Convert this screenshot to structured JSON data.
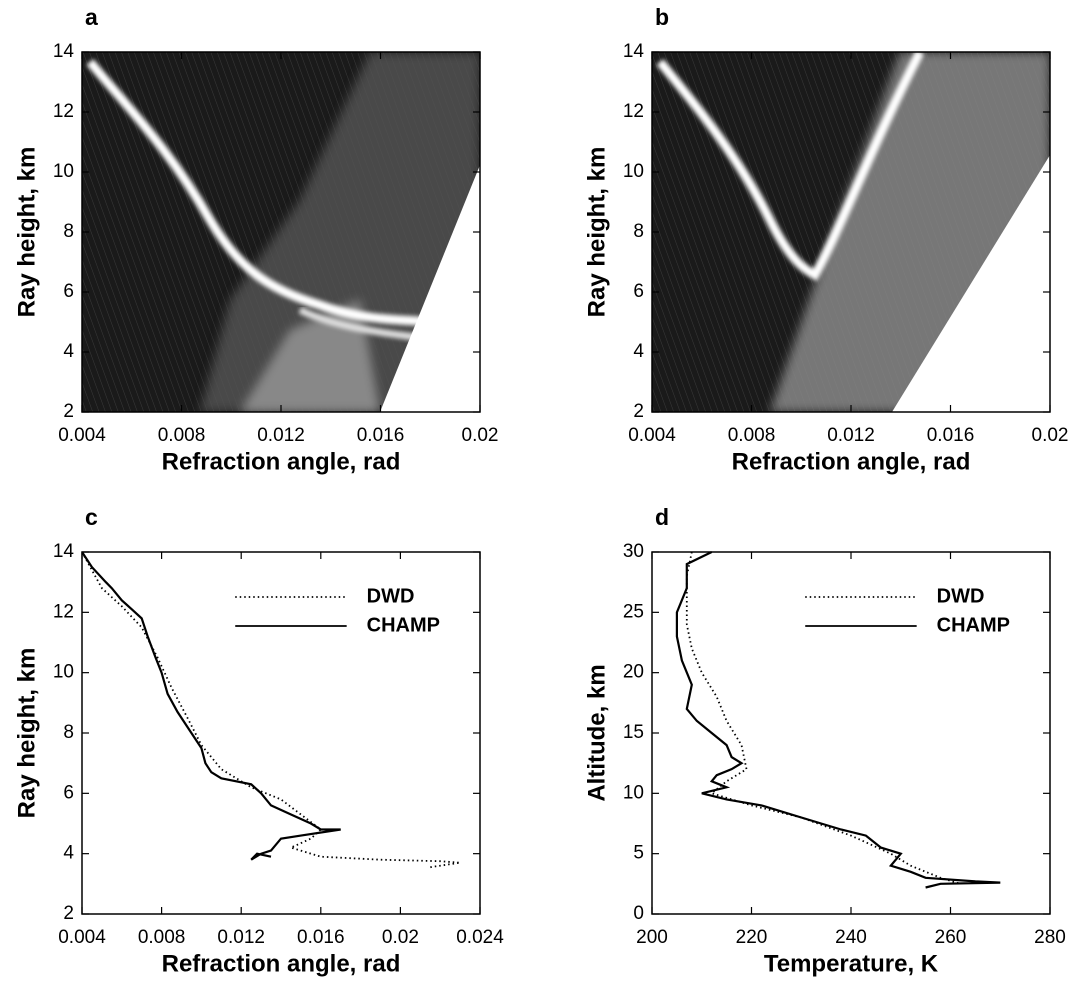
{
  "chart_data": [
    {
      "type": "heatmap",
      "label": "a",
      "xlabel": "Refraction angle, rad",
      "ylabel": "Ray height, km",
      "xlim": [
        0.004,
        0.02
      ],
      "ylim": [
        2,
        14
      ],
      "xticks": [
        0.004,
        0.008,
        0.012,
        0.016,
        0.02
      ],
      "yticks": [
        2,
        4,
        6,
        8,
        10,
        12,
        14
      ]
    },
    {
      "type": "heatmap",
      "label": "b",
      "xlabel": "Refraction angle, rad",
      "ylabel": "Ray height, km",
      "xlim": [
        0.004,
        0.02
      ],
      "ylim": [
        2,
        14
      ],
      "xticks": [
        0.004,
        0.008,
        0.012,
        0.016,
        0.02
      ],
      "yticks": [
        2,
        4,
        6,
        8,
        10,
        12,
        14
      ]
    },
    {
      "type": "line",
      "label": "c",
      "xlabel": "Refraction angle, rad",
      "ylabel": "Ray height, km",
      "xlim": [
        0.004,
        0.024
      ],
      "ylim": [
        2,
        14
      ],
      "xticks": [
        0.004,
        0.008,
        0.012,
        0.016,
        0.02,
        0.024
      ],
      "yticks": [
        2,
        4,
        6,
        8,
        10,
        12,
        14
      ],
      "legend": "upper right",
      "series": [
        {
          "name": "DWD",
          "color": "#000000",
          "linestyle": "dotted",
          "x": [
            0.004,
            0.0045,
            0.005,
            0.006,
            0.007,
            0.0078,
            0.0085,
            0.0093,
            0.01,
            0.011,
            0.0125,
            0.014,
            0.015,
            0.016,
            0.0155,
            0.0145,
            0.016,
            0.019,
            0.022,
            0.023,
            0.0215
          ],
          "values": [
            14,
            13.4,
            12.8,
            12.2,
            11.5,
            10.5,
            9.5,
            8.5,
            7.6,
            6.8,
            6.2,
            5.8,
            5.3,
            4.8,
            4.5,
            4.2,
            3.9,
            3.8,
            3.75,
            3.7,
            3.55
          ]
        },
        {
          "name": "CHAMP",
          "color": "#000000",
          "linestyle": "solid",
          "x": [
            0.004,
            0.0045,
            0.0052,
            0.0055,
            0.006,
            0.0065,
            0.007,
            0.0073,
            0.0077,
            0.008,
            0.0083,
            0.0088,
            0.0095,
            0.01,
            0.0102,
            0.0105,
            0.011,
            0.0125,
            0.013,
            0.0135,
            0.0145,
            0.0155,
            0.016,
            0.017,
            0.015,
            0.014,
            0.0135,
            0.013,
            0.0125,
            0.0128,
            0.0135
          ],
          "values": [
            14,
            13.5,
            13,
            12.8,
            12.4,
            12.1,
            11.8,
            11.2,
            10.5,
            10,
            9.3,
            8.7,
            8,
            7.5,
            7,
            6.7,
            6.5,
            6.3,
            6,
            5.6,
            5.3,
            5,
            4.8,
            4.8,
            4.6,
            4.5,
            4.1,
            4,
            3.8,
            4,
            3.9
          ]
        }
      ]
    },
    {
      "type": "line",
      "label": "d",
      "xlabel": "Temperature, K",
      "ylabel": "Altitude, km",
      "xlim": [
        200,
        280
      ],
      "ylim": [
        0,
        30
      ],
      "xticks": [
        200,
        220,
        240,
        260,
        280
      ],
      "yticks": [
        0,
        5,
        10,
        15,
        20,
        25,
        30
      ],
      "legend": "upper right",
      "series": [
        {
          "name": "DWD",
          "color": "#000000",
          "linestyle": "dotted",
          "x": [
            208,
            207,
            207,
            207,
            208,
            210,
            213,
            215,
            218,
            219,
            215,
            212,
            220,
            230,
            240,
            248,
            252,
            258,
            262
          ],
          "values": [
            30,
            28,
            26,
            24,
            22,
            20,
            18,
            16,
            14,
            12,
            11,
            10,
            9,
            8,
            6.5,
            5,
            4,
            3,
            2.5
          ]
        },
        {
          "name": "CHAMP",
          "color": "#000000",
          "linestyle": "solid",
          "x": [
            212,
            207,
            207,
            205,
            205,
            206,
            208,
            207,
            209,
            212,
            215,
            216,
            218,
            216,
            213,
            212,
            215,
            210,
            215,
            222,
            230,
            238,
            243,
            246,
            250,
            248,
            252,
            255,
            265,
            270,
            258,
            255
          ],
          "values": [
            30,
            29,
            27,
            25,
            23,
            21,
            19,
            17,
            16,
            15,
            14,
            13,
            12.5,
            12,
            11.5,
            11,
            10.5,
            10,
            9.5,
            9,
            8,
            7,
            6.5,
            5.5,
            5,
            4,
            3.5,
            3,
            2.7,
            2.6,
            2.5,
            2.2
          ]
        }
      ]
    }
  ]
}
